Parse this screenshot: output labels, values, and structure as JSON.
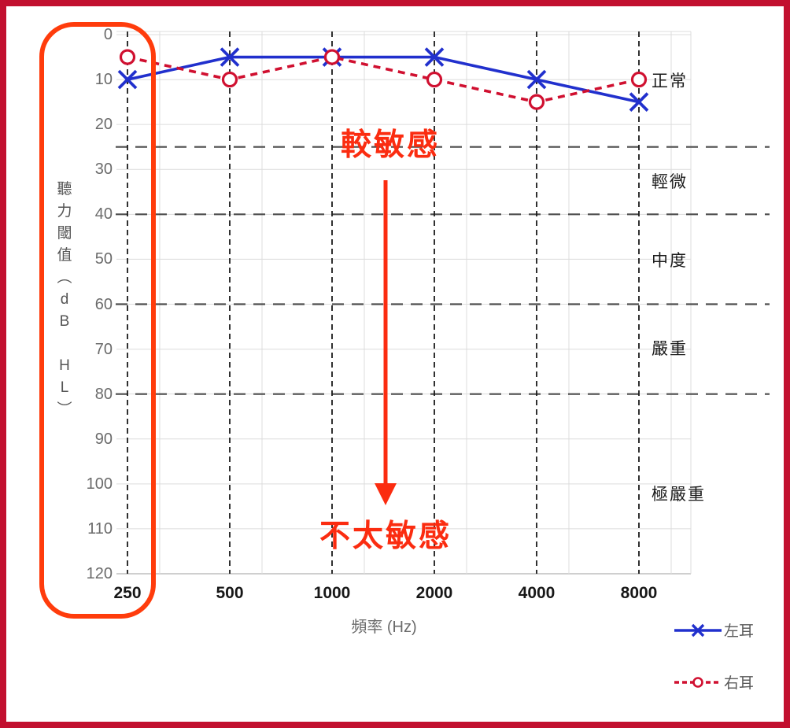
{
  "chart_data": {
    "type": "line",
    "x_categories": [
      "250",
      "500",
      "1000",
      "2000",
      "4000",
      "8000"
    ],
    "xlabel": "頻率 (Hz)",
    "ylabel": "聽力閾值（dB HL）",
    "ylabel_vertical_chars": [
      "聽",
      "力",
      "閾",
      "值",
      "︵",
      "d",
      "B",
      " ",
      "H",
      "L",
      "︶"
    ],
    "y_ticks": [
      0,
      10,
      20,
      30,
      40,
      50,
      60,
      70,
      80,
      90,
      100,
      110,
      120
    ],
    "ylim": [
      0,
      120
    ],
    "y_inverted": true,
    "grid": true,
    "series": [
      {
        "name": "左耳",
        "marker": "x",
        "line": "solid",
        "color": "#2130cd",
        "values": [
          10,
          5,
          5,
          5,
          10,
          15
        ]
      },
      {
        "name": "右耳",
        "marker": "circle",
        "line": "dashed",
        "color": "#d01030",
        "values": [
          5,
          10,
          5,
          10,
          15,
          10
        ]
      }
    ],
    "severity_boundaries_db": [
      25,
      40,
      60,
      80
    ],
    "severity_zones": [
      {
        "label": "正常",
        "center_db": 10.5
      },
      {
        "label": "輕微",
        "center_db": 33
      },
      {
        "label": "中度",
        "center_db": 50.5
      },
      {
        "label": "嚴重",
        "center_db": 70
      },
      {
        "label": "極嚴重",
        "center_db": 102.5
      }
    ],
    "legend_position": "bottom-right"
  },
  "annotations": {
    "top_label": "較敏感",
    "bottom_label": "不太敏感",
    "arrow_direction": "down",
    "color": "#fb2c10"
  },
  "highlight_box": {
    "target": "y-axis",
    "color": "#ff3c0c"
  },
  "colors": {
    "page_border": "#c2102f",
    "grid": "#dcdcdc",
    "axis_line": "#bfbfbf",
    "category_dash": "#1a1a1a",
    "severity_dash": "#4d4d4d",
    "y_tick_text": "#6b6b6b",
    "x_tick_text": "#171717",
    "legend_text": "#595959"
  }
}
